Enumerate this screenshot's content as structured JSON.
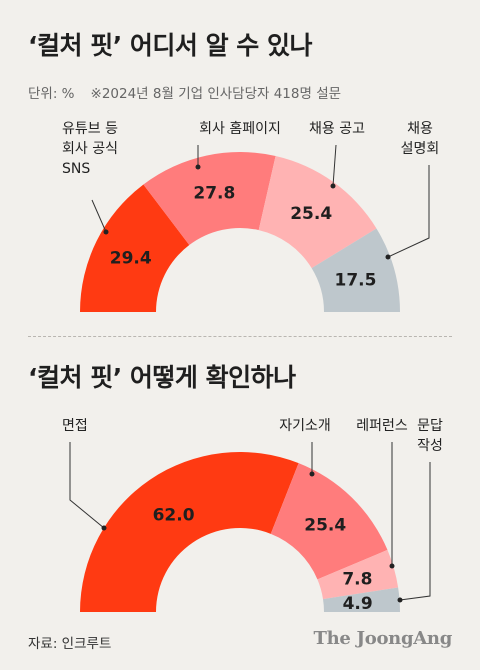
{
  "titles": {
    "chart1": "‘컬처 핏’ 어디서 알 수 있나",
    "chart2": "‘컬처 핏’ 어떻게 확인하나"
  },
  "meta": {
    "unit": "단위: %",
    "note": "※2024년 8월 기업 인사담당자 418명 설문"
  },
  "footer": {
    "source": "자료: 인크루트",
    "brand": "The JoongAng"
  },
  "chart_data": [
    {
      "type": "pie",
      "title": "‘컬처 핏’ 어디서 알 수 있나",
      "unit": "%",
      "slices": [
        {
          "label": "유튜브 등\n회사 공식\nSNS",
          "value": 29.4,
          "color": "#ff3a12"
        },
        {
          "label": "회사 홈페이지",
          "value": 27.8,
          "color": "#ff7c7c"
        },
        {
          "label": "채용 공고",
          "value": 25.4,
          "color": "#ffb3b3"
        },
        {
          "label": "채용\n설명회",
          "value": 17.5,
          "color": "#bec7cc"
        }
      ]
    },
    {
      "type": "pie",
      "title": "‘컬처 핏’ 어떻게 확인하나",
      "unit": "%",
      "slices": [
        {
          "label": "면접",
          "value": 62.0,
          "color": "#ff3a12"
        },
        {
          "label": "자기소개",
          "value": 25.4,
          "color": "#ff7c7c"
        },
        {
          "label": "레퍼런스",
          "value": 7.8,
          "color": "#ffb3b3"
        },
        {
          "label": "문답\n작성",
          "value": 4.9,
          "color": "#bec7cc"
        }
      ]
    }
  ]
}
